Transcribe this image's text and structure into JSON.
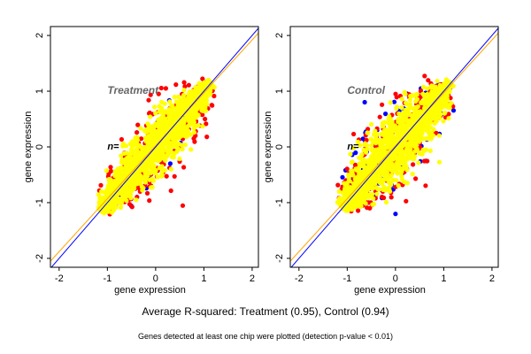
{
  "chart_data": [
    {
      "type": "scatter",
      "title": "Treatment",
      "n_label": "n=",
      "xlabel": "gene expression",
      "ylabel": "gene expression",
      "xlim": [
        -2.18,
        2.13
      ],
      "ylim": [
        -2.16,
        2.16
      ],
      "xticks": [
        -2,
        -1,
        0,
        1,
        2
      ],
      "yticks": [
        -2,
        -1,
        0,
        1,
        2
      ],
      "reference_lines": [
        {
          "name": "identity",
          "color": "#0000ff",
          "slope": 1.0,
          "intercept": 0.0
        },
        {
          "name": "fit",
          "color": "#ffa500",
          "slope": 0.95,
          "intercept": 0.02
        }
      ],
      "series": [
        {
          "name": "blue points",
          "color": "#0000ff",
          "count": 40,
          "range": [
            -1.15,
            1.1
          ],
          "spread": 0.22,
          "seed": 11
        },
        {
          "name": "red points",
          "color": "#ff0000",
          "count": 260,
          "range": [
            -1.1,
            1.1
          ],
          "spread": 0.3,
          "seed": 23
        },
        {
          "name": "yellow points",
          "color": "#ffff00",
          "count": 1400,
          "range": [
            -1.15,
            1.15
          ],
          "spread": 0.17,
          "seed": 37
        }
      ]
    },
    {
      "type": "scatter",
      "title": "Control",
      "n_label": "n=",
      "xlabel": "gene expression",
      "ylabel": "gene expression",
      "xlim": [
        -2.18,
        2.13
      ],
      "ylim": [
        -2.16,
        2.16
      ],
      "xticks": [
        -2,
        -1,
        0,
        1,
        2
      ],
      "yticks": [
        -2,
        -1,
        0,
        1,
        2
      ],
      "reference_lines": [
        {
          "name": "identity",
          "color": "#0000ff",
          "slope": 1.0,
          "intercept": 0.0
        },
        {
          "name": "fit",
          "color": "#ffa500",
          "slope": 0.95,
          "intercept": 0.02
        }
      ],
      "series": [
        {
          "name": "blue points",
          "color": "#0000ff",
          "count": 110,
          "range": [
            -1.1,
            1.1
          ],
          "spread": 0.32,
          "seed": 51
        },
        {
          "name": "red points",
          "color": "#ff0000",
          "count": 300,
          "range": [
            -1.05,
            1.1
          ],
          "spread": 0.33,
          "seed": 63
        },
        {
          "name": "yellow points",
          "color": "#ffff00",
          "count": 1400,
          "range": [
            -1.1,
            1.15
          ],
          "spread": 0.2,
          "seed": 79
        }
      ]
    }
  ],
  "caption": {
    "rsquared": "Average R-squared: Treatment (0.95), Control (0.94)",
    "note": "Genes detected at least one chip were plotted (detection p-value < 0.01)"
  }
}
